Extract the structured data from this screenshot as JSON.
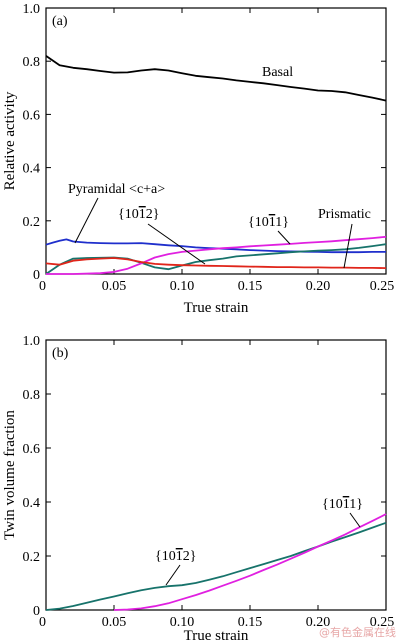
{
  "chart_data": [
    {
      "type": "line",
      "panel_label": "(a)",
      "xlabel": "True strain",
      "ylabel": "Relative activity",
      "xlim": [
        0,
        0.25
      ],
      "ylim": [
        0,
        1.0
      ],
      "xticks": [
        "0",
        "0.05",
        "0.10",
        "0.15",
        "0.20",
        "0.25"
      ],
      "yticks": [
        "0",
        "0.2",
        "0.4",
        "0.6",
        "0.8",
        "1.0"
      ],
      "series": [
        {
          "name": "Basal",
          "color": "#000000",
          "x": [
            0,
            0.01,
            0.02,
            0.03,
            0.04,
            0.05,
            0.06,
            0.07,
            0.08,
            0.09,
            0.1,
            0.11,
            0.12,
            0.13,
            0.14,
            0.15,
            0.16,
            0.17,
            0.18,
            0.19,
            0.2,
            0.21,
            0.22,
            0.23,
            0.24,
            0.25
          ],
          "y": [
            0.82,
            0.785,
            0.775,
            0.77,
            0.763,
            0.757,
            0.758,
            0.765,
            0.77,
            0.765,
            0.755,
            0.745,
            0.74,
            0.735,
            0.728,
            0.722,
            0.717,
            0.71,
            0.703,
            0.697,
            0.69,
            0.688,
            0.683,
            0.673,
            0.663,
            0.652
          ]
        },
        {
          "name": "Pyramidal <c+a>",
          "color": "#1f2fcc",
          "x": [
            0,
            0.005,
            0.01,
            0.015,
            0.02,
            0.03,
            0.04,
            0.05,
            0.06,
            0.07,
            0.08,
            0.09,
            0.1,
            0.11,
            0.12,
            0.13,
            0.14,
            0.15,
            0.16,
            0.17,
            0.18,
            0.19,
            0.2,
            0.21,
            0.22,
            0.23,
            0.24,
            0.25
          ],
          "y": [
            0.11,
            0.118,
            0.125,
            0.13,
            0.122,
            0.118,
            0.116,
            0.115,
            0.115,
            0.116,
            0.112,
            0.108,
            0.105,
            0.1,
            0.097,
            0.095,
            0.093,
            0.09,
            0.088,
            0.086,
            0.085,
            0.084,
            0.083,
            0.082,
            0.082,
            0.082,
            0.083,
            0.083
          ]
        },
        {
          "name": "{10-12}",
          "color": "#17736b",
          "x": [
            0,
            0.01,
            0.02,
            0.03,
            0.04,
            0.05,
            0.06,
            0.07,
            0.08,
            0.09,
            0.1,
            0.11,
            0.12,
            0.13,
            0.14,
            0.15,
            0.16,
            0.17,
            0.18,
            0.19,
            0.2,
            0.21,
            0.22,
            0.23,
            0.24,
            0.25
          ],
          "y": [
            0.0,
            0.035,
            0.058,
            0.06,
            0.061,
            0.062,
            0.058,
            0.042,
            0.025,
            0.018,
            0.032,
            0.045,
            0.052,
            0.058,
            0.066,
            0.07,
            0.074,
            0.078,
            0.082,
            0.085,
            0.088,
            0.09,
            0.093,
            0.098,
            0.105,
            0.112
          ]
        },
        {
          "name": "{10-11}",
          "color": "#e020e0",
          "x": [
            0,
            0.02,
            0.04,
            0.05,
            0.06,
            0.07,
            0.08,
            0.09,
            0.1,
            0.11,
            0.12,
            0.13,
            0.14,
            0.15,
            0.16,
            0.17,
            0.18,
            0.19,
            0.2,
            0.21,
            0.22,
            0.23,
            0.24,
            0.25
          ],
          "y": [
            0.0,
            0.0,
            0.003,
            0.008,
            0.02,
            0.04,
            0.062,
            0.075,
            0.083,
            0.088,
            0.093,
            0.097,
            0.1,
            0.104,
            0.107,
            0.11,
            0.113,
            0.117,
            0.12,
            0.123,
            0.127,
            0.131,
            0.135,
            0.14
          ]
        },
        {
          "name": "Prismatic",
          "color": "#e0251a",
          "x": [
            0,
            0.01,
            0.02,
            0.03,
            0.04,
            0.05,
            0.06,
            0.07,
            0.08,
            0.09,
            0.1,
            0.11,
            0.12,
            0.13,
            0.14,
            0.15,
            0.16,
            0.17,
            0.18,
            0.19,
            0.2,
            0.21,
            0.22,
            0.23,
            0.24,
            0.25
          ],
          "y": [
            0.04,
            0.035,
            0.05,
            0.055,
            0.058,
            0.06,
            0.055,
            0.045,
            0.038,
            0.035,
            0.033,
            0.032,
            0.031,
            0.03,
            0.029,
            0.028,
            0.027,
            0.026,
            0.026,
            0.025,
            0.025,
            0.024,
            0.024,
            0.023,
            0.023,
            0.022
          ]
        }
      ],
      "annotations": [
        {
          "text": "Basal"
        },
        {
          "text": "Pyramidal <c+a>"
        },
        {
          "text": "{10",
          "bar": "1",
          "tail": "2}"
        },
        {
          "text": "{10",
          "bar": "1",
          "tail": "1}"
        },
        {
          "text": "Prismatic"
        }
      ]
    },
    {
      "type": "line",
      "panel_label": "(b)",
      "xlabel": "True strain",
      "ylabel": "Twin volume fraction",
      "xlim": [
        0,
        0.25
      ],
      "ylim": [
        0,
        1.0
      ],
      "xticks": [
        "0",
        "0.05",
        "0.10",
        "0.15",
        "0.20",
        "0.25"
      ],
      "yticks": [
        "0",
        "0.2",
        "0.4",
        "0.6",
        "0.8",
        "1.0"
      ],
      "series": [
        {
          "name": "{10-12}",
          "color": "#17736b",
          "x": [
            0,
            0.01,
            0.02,
            0.03,
            0.04,
            0.05,
            0.06,
            0.07,
            0.08,
            0.09,
            0.1,
            0.11,
            0.12,
            0.13,
            0.14,
            0.15,
            0.16,
            0.17,
            0.18,
            0.19,
            0.2,
            0.21,
            0.22,
            0.23,
            0.24,
            0.25
          ],
          "y": [
            0.0,
            0.005,
            0.015,
            0.027,
            0.039,
            0.05,
            0.062,
            0.073,
            0.082,
            0.088,
            0.092,
            0.1,
            0.112,
            0.125,
            0.14,
            0.155,
            0.17,
            0.185,
            0.2,
            0.218,
            0.235,
            0.253,
            0.27,
            0.287,
            0.305,
            0.323
          ]
        },
        {
          "name": "{10-11}",
          "color": "#e020e0",
          "x": [
            0.05,
            0.06,
            0.07,
            0.08,
            0.09,
            0.1,
            0.11,
            0.12,
            0.13,
            0.14,
            0.15,
            0.16,
            0.17,
            0.18,
            0.19,
            0.2,
            0.21,
            0.22,
            0.23,
            0.24,
            0.25
          ],
          "y": [
            0.0,
            0.002,
            0.006,
            0.014,
            0.025,
            0.04,
            0.055,
            0.072,
            0.09,
            0.108,
            0.127,
            0.148,
            0.168,
            0.19,
            0.212,
            0.235,
            0.257,
            0.28,
            0.305,
            0.33,
            0.355
          ]
        }
      ],
      "annotations": [
        {
          "text": "{10",
          "bar": "1",
          "tail": "2}"
        },
        {
          "text": "{10",
          "bar": "1",
          "tail": "1}"
        }
      ]
    }
  ],
  "watermark": "@有色金属在线"
}
